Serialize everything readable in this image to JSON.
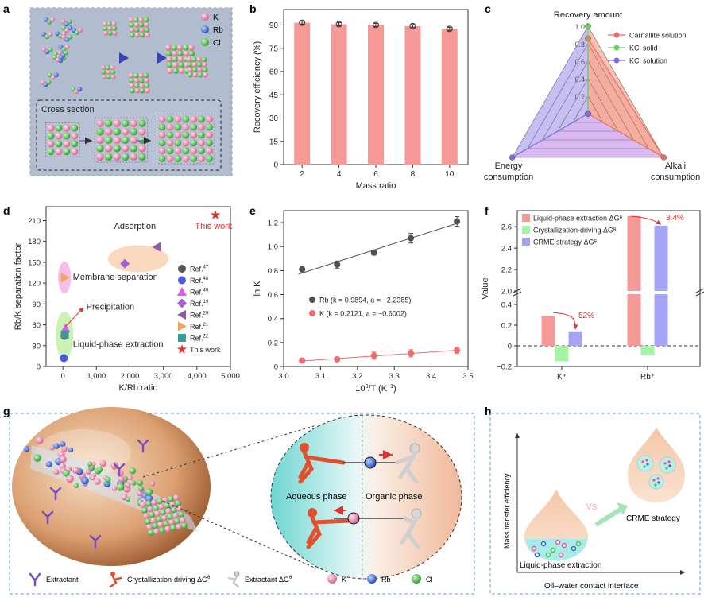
{
  "panel_letters": {
    "a": "a",
    "b": "b",
    "c": "c",
    "d": "d",
    "e": "e",
    "f": "f",
    "g": "g",
    "h": "h"
  },
  "panel_a": {
    "legend": {
      "k": "K",
      "rb": "Rb",
      "cl": "Cl"
    },
    "cross_section_label": "Cross section"
  },
  "colors": {
    "bar_red": "#f69a98",
    "bar_green": "#a6f2a6",
    "bar_blue": "#a6a4f5",
    "k_pink": "#e8799f",
    "rb_blue": "#2f5fd6",
    "cl_green": "#3dc23d",
    "panel_a_bg": "#9aa6bd",
    "accent_red": "#e0332f"
  },
  "chart_data": [
    {
      "id": "b",
      "type": "bar",
      "categories": [
        "2",
        "4",
        "6",
        "8",
        "10"
      ],
      "values": [
        91.5,
        90.5,
        90.0,
        89.3,
        87.5
      ],
      "errors": [
        1.0,
        1.0,
        1.0,
        1.0,
        1.0
      ],
      "xlabel": "Mass ratio",
      "ylabel": "Recovery efficiency (%)",
      "ylim": [
        0,
        100
      ],
      "yticks": [
        "0",
        "15",
        "30",
        "45",
        "60",
        "75",
        "90"
      ]
    },
    {
      "id": "c",
      "type": "radar",
      "axes": [
        "Recovery amount",
        "Alkali consumption",
        "Energy consumption"
      ],
      "axis_display": {
        "top": "Recovery amount",
        "right_1": "Alkali",
        "right_2": "consumption",
        "left_1": "Energy",
        "left_2": "consumption"
      },
      "ticks": [
        "0.2",
        "0.4",
        "0.6",
        "0.8",
        "1.0"
      ],
      "series": [
        {
          "name": "Carnallite solution",
          "values": [
            0.86,
            1.0,
            0.0
          ],
          "color": "#e9725c"
        },
        {
          "name": "KCl solid",
          "values": [
            1.0,
            0.0,
            0.0
          ],
          "color": "#67d167"
        },
        {
          "name": "KCl solution",
          "values": [
            0.0,
            0.0,
            1.0
          ],
          "color": "#7c6de0"
        }
      ]
    },
    {
      "id": "d",
      "type": "scatter",
      "xlabel": "K/Rb ratio",
      "ylabel": "Rb/K separation factor",
      "xlim": [
        -500,
        5000
      ],
      "ylim": [
        0,
        230
      ],
      "xticks": [
        "0",
        "1,000",
        "2,000",
        "3,000",
        "4,000",
        "5,000"
      ],
      "yticks": [
        "0",
        "30",
        "60",
        "90",
        "120",
        "150",
        "180",
        "210"
      ],
      "series": [
        {
          "name": "Ref. 47",
          "marker": "circle",
          "color": "#555555",
          "x": 50,
          "y": 44
        },
        {
          "name": "Ref. 48",
          "marker": "circle",
          "color": "#4a5be0",
          "x": 30,
          "y": 12
        },
        {
          "name": "Ref. 49",
          "marker": "triangle-up",
          "color": "#e05be8",
          "x": 80,
          "y": 55
        },
        {
          "name": "Ref. 19",
          "marker": "diamond",
          "color": "#a35de0",
          "x": 1850,
          "y": 148
        },
        {
          "name": "Ref. 20",
          "marker": "triangle-left",
          "color": "#8e5aa6",
          "x": 2800,
          "y": 172
        },
        {
          "name": "Ref. 21",
          "marker": "triangle-right",
          "color": "#f2a65a",
          "x": 60,
          "y": 128
        },
        {
          "name": "Ref. 22",
          "marker": "square",
          "color": "#3a9a94",
          "x": 60,
          "y": 46
        },
        {
          "name": "This work",
          "marker": "star",
          "color": "#e0332f",
          "x": 4550,
          "y": 218
        }
      ],
      "legend_labels": [
        "Ref.",
        "Ref.",
        "Ref.",
        "Ref.",
        "Ref.",
        "Ref.",
        "Ref.",
        "This work"
      ],
      "legend_sups": [
        "47",
        "48",
        "49",
        "19",
        "20",
        "21",
        "22",
        ""
      ],
      "annotations": {
        "adsorption": "Adsorption",
        "this_work": "This work",
        "membrane": "Membrane separation",
        "precipitation": "Precipitation",
        "liquid_phase": "Liquid-phase extraction"
      }
    },
    {
      "id": "e",
      "type": "line",
      "xlabel_main": "10",
      "xlabel_sup": "3",
      "xlabel_rest": "/T (K",
      "xlabel_sup2": "−1",
      "xlabel_end": ")",
      "ylabel": "ln K",
      "xlim": [
        3.0,
        3.5
      ],
      "ylim": [
        0,
        1.3
      ],
      "xticks": [
        "3.0",
        "3.1",
        "3.2",
        "3.3",
        "3.4",
        "3.5"
      ],
      "yticks": [
        "0",
        "0.2",
        "0.4",
        "0.6",
        "0.8",
        "1.0",
        "1.2"
      ],
      "series": [
        {
          "name": "Rb",
          "color": "#505050",
          "x": [
            3.05,
            3.145,
            3.245,
            3.345,
            3.47
          ],
          "y": [
            0.81,
            0.85,
            0.95,
            1.07,
            1.21
          ],
          "err": [
            0.02,
            0.03,
            0.02,
            0.04,
            0.04
          ],
          "fit": {
            "k": 0.9894,
            "a": -2.2385
          },
          "legend": "Rb (k = 0.9894, a = −2.2385)"
        },
        {
          "name": "K",
          "color": "#ee6c6c",
          "x": [
            3.05,
            3.145,
            3.245,
            3.345,
            3.47
          ],
          "y": [
            0.05,
            0.06,
            0.09,
            0.11,
            0.135
          ],
          "err": [
            0.02,
            0.015,
            0.03,
            0.03,
            0.025
          ],
          "fit": {
            "k": 0.2121,
            "a": -0.6002
          },
          "legend": "K (k = 0.2121, a = −0.6002)"
        }
      ]
    },
    {
      "id": "f",
      "type": "bar",
      "categories": [
        "K⁺",
        "Rb⁺"
      ],
      "ylabel": "Value",
      "ylim_lower": [
        -0.2,
        0.5
      ],
      "ylim_upper": [
        2.0,
        2.75
      ],
      "yticks_lower": [
        "−0.2",
        "0",
        "0.2",
        "0.4"
      ],
      "yticks_upper": [
        "2.0",
        "2.2",
        "2.4",
        "2.6"
      ],
      "series": [
        {
          "name": "Liquid-phase extraction ΔGᶿ",
          "values": [
            0.29,
            2.7
          ],
          "color": "#f69a98"
        },
        {
          "name": "Crystallization-driving ΔGᶿ",
          "values": [
            -0.15,
            -0.09
          ],
          "color": "#a6f2a6"
        },
        {
          "name": "CRME strategy ΔGᶿ",
          "values": [
            0.14,
            2.61
          ],
          "color": "#a6a4f5"
        }
      ],
      "annotations": {
        "k_change": "52%",
        "rb_change": "3.4%"
      }
    }
  ],
  "panel_g": {
    "aqueous": "Aqueous phase",
    "organic": "Organic phase",
    "legend": {
      "extractant": "Extractant",
      "cryst_main": "Crystallization-driving ΔG",
      "cryst_sup": "θ",
      "ext_main": "Extractant ΔG",
      "ext_sup": "θ",
      "k": "K",
      "rb": "Rb",
      "cl": "Cl"
    }
  },
  "panel_h": {
    "ylabel": "Mass transfer efficiency",
    "xlabel": "Oil–water contact interface",
    "vs": "VS",
    "left_label": "Liquid-phase extraction",
    "right_label": "CRME strategy"
  }
}
